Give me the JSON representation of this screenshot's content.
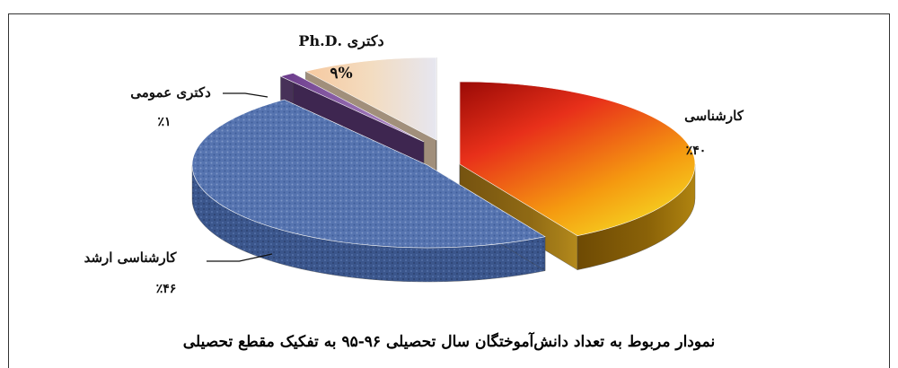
{
  "caption": "نمودار مربوط به تعداد دانش‌آموختگان سال تحصیلی ۹۶-۹۵ به تفکیک مقطع تحصیلی",
  "labels": {
    "karshenasi_name": "کارشناسی",
    "karshenasi_pct": "٪۴۰",
    "arshad_name": "کارشناسی ارشد",
    "arshad_pct": "٪۴۶",
    "omoomi_name": "دکتری عمومی",
    "omoomi_pct": "٪۱",
    "phd_name": "دکتری .Ph.D",
    "phd_pct": "۹%"
  },
  "chart_data": {
    "type": "pie",
    "style": "3d-exploded",
    "title": "نمودار مربوط به تعداد دانش‌آموختگان سال تحصیلی ۹۶-۹۵ به تفکیک مقطع تحصیلی",
    "slices": [
      {
        "name": "کارشناسی",
        "value": 40,
        "label": "٪۴۰",
        "color": "#e8301a",
        "color_light": "#f5c518",
        "color_side": "#7a5a08"
      },
      {
        "name": "کارشناسی ارشد",
        "value": 46,
        "label": "٪۴۶",
        "color": "#4a6aa8",
        "color_light": "#7891c4",
        "color_side": "#2f4778"
      },
      {
        "name": "دکتری عمومی",
        "value": 1,
        "label": "٪۱",
        "color": "#8a5aa8",
        "color_light": "#a77fc2",
        "color_side": "#3e2650"
      },
      {
        "name": "دکتری .Ph.D",
        "value": 9,
        "label": "۹%",
        "color": "#f1d9b8",
        "color_light": "#fbeede",
        "color_side": "#9c8a74"
      }
    ]
  }
}
